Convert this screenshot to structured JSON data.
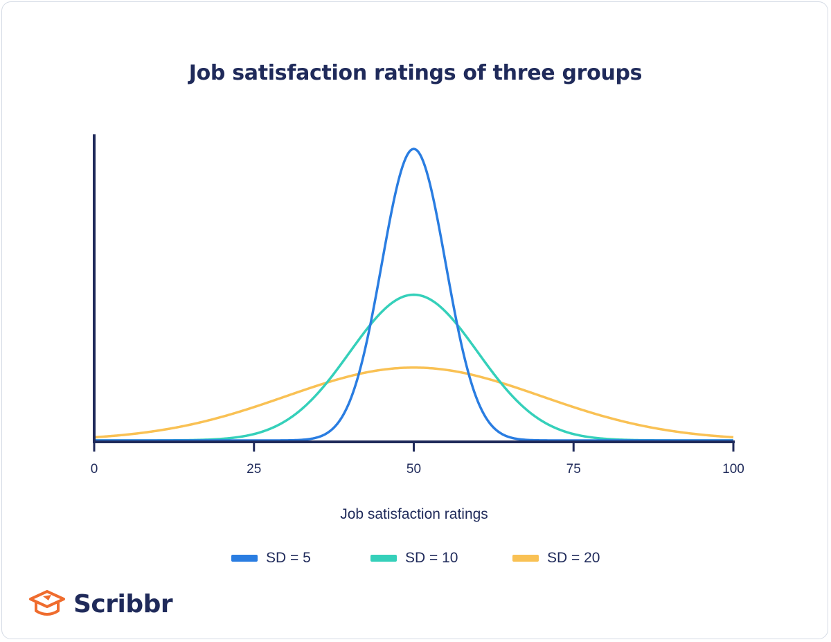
{
  "chart_data": {
    "type": "line",
    "title": "Job satisfaction ratings of three groups",
    "xlabel": "Job satisfaction ratings",
    "ylabel": "",
    "xlim": [
      0,
      100
    ],
    "x_ticks": [
      0,
      25,
      50,
      75,
      100
    ],
    "x_tick_labels": [
      "0",
      "25",
      "50",
      "75",
      "100"
    ],
    "grid": false,
    "legend_position": "bottom",
    "series": [
      {
        "name": "SD = 5",
        "label": "SD = 5",
        "mean": 50,
        "sd": 5,
        "color": "#2a7de1"
      },
      {
        "name": "SD = 10",
        "label": "SD = 10",
        "mean": 50,
        "sd": 10,
        "color": "#35d0ba"
      },
      {
        "name": "SD = 20",
        "label": "SD = 20",
        "mean": 50,
        "sd": 20,
        "color": "#f9c154"
      }
    ]
  },
  "brand": {
    "name": "Scribbr",
    "accent_color": "#ef6c2e",
    "text_color": "#1f2a5a"
  }
}
